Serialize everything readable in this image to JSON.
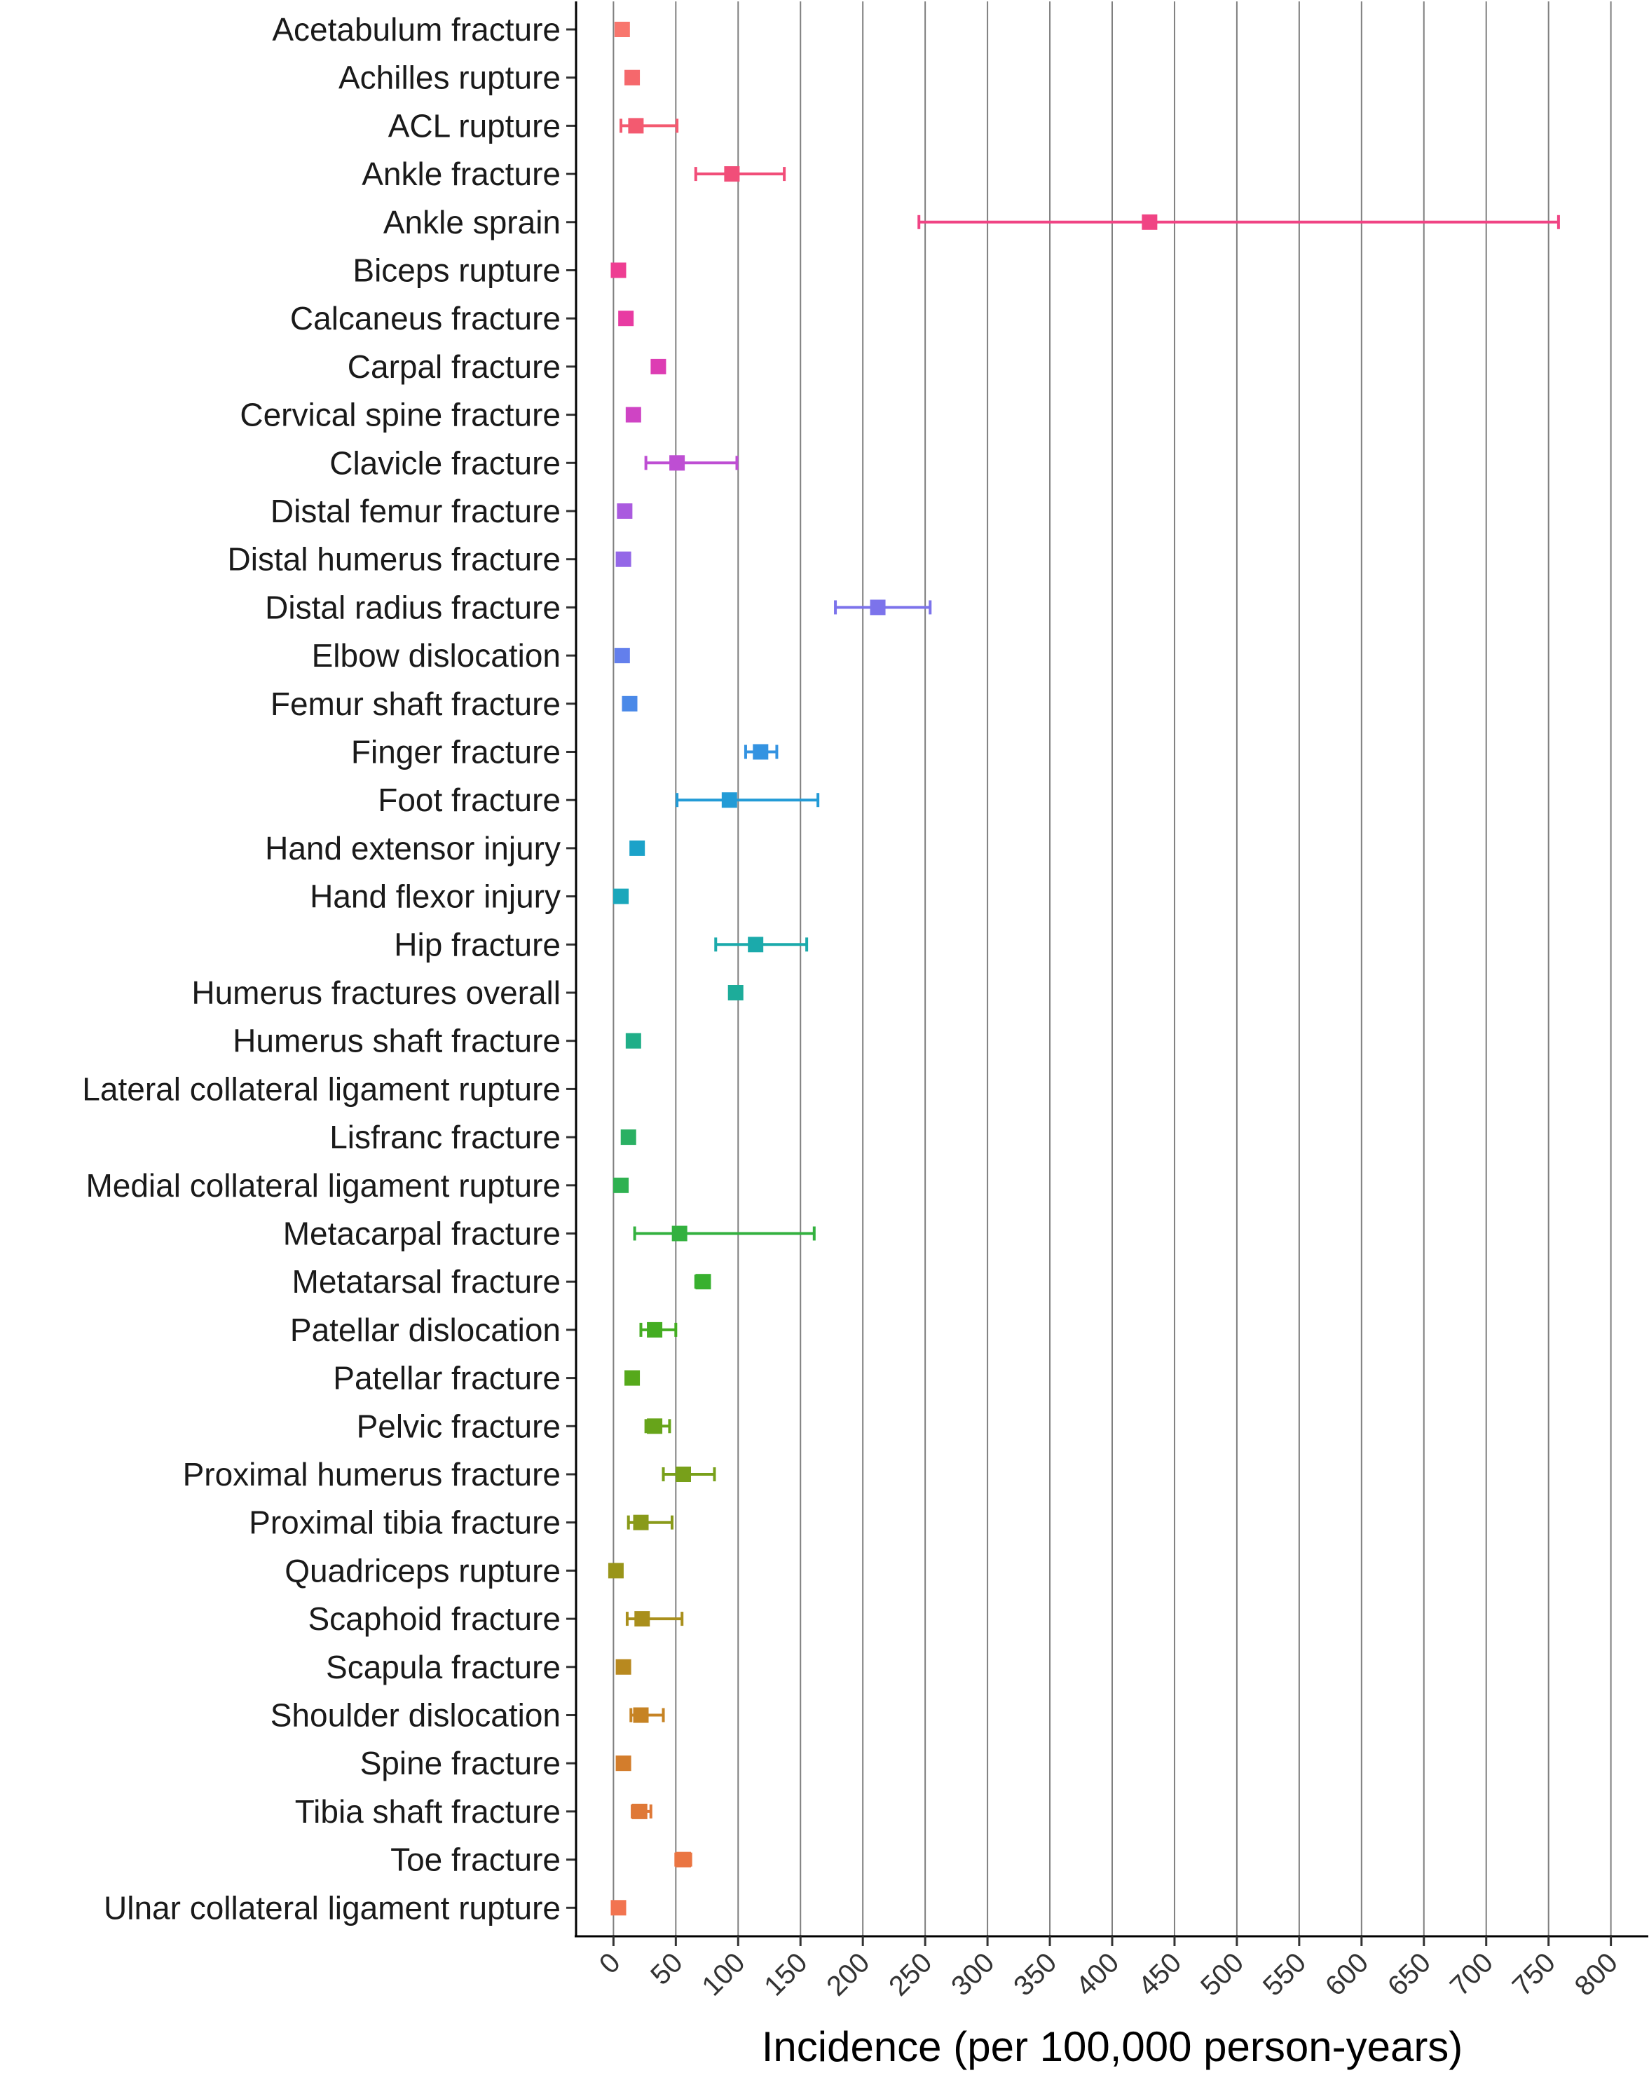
{
  "chart_data": {
    "type": "scatter",
    "subtype": "dot-with-error-bars",
    "title": "",
    "xlabel": "Incidence (per 100,000 person-years)",
    "ylabel": "",
    "xlim": [
      -30,
      830
    ],
    "xticks": [
      0,
      50,
      100,
      150,
      200,
      250,
      300,
      350,
      400,
      450,
      500,
      550,
      600,
      650,
      700,
      750,
      800
    ],
    "xtick_labels": [
      "0",
      "50",
      "100",
      "150",
      "200",
      "250",
      "300",
      "350",
      "400",
      "450",
      "500",
      "550",
      "600",
      "650",
      "700",
      "750",
      "800"
    ],
    "grid": "vertical major gridlines",
    "legend": "none",
    "categories": [
      "Acetabulum fracture",
      "Achilles rupture",
      "ACL rupture",
      "Ankle fracture",
      "Ankle sprain",
      "Biceps rupture",
      "Calcaneus fracture",
      "Carpal fracture",
      "Cervical spine fracture",
      "Clavicle fracture",
      "Distal femur fracture",
      "Distal humerus fracture",
      "Distal radius fracture",
      "Elbow dislocation",
      "Femur shaft fracture",
      "Finger fracture",
      "Foot fracture",
      "Hand extensor injury",
      "Hand flexor injury",
      "Hip fracture",
      "Humerus fractures overall",
      "Humerus shaft fracture",
      "Lateral collateral ligament rupture",
      "Lisfranc fracture",
      "Medial collateral ligament rupture",
      "Metacarpal fracture",
      "Metatarsal fracture",
      "Patellar dislocation",
      "Patellar fracture",
      "Pelvic fracture",
      "Proximal humerus fracture",
      "Proximal tibia fracture",
      "Quadriceps rupture",
      "Scaphoid fracture",
      "Scapula fracture",
      "Shoulder dislocation",
      "Spine fracture",
      "Tibia shaft fracture",
      "Toe fracture",
      "Ulnar collateral ligament rupture"
    ],
    "values": [
      7,
      15,
      18,
      95,
      430,
      4,
      10,
      36,
      16,
      51,
      9,
      8,
      212,
      7,
      13,
      118,
      93,
      19,
      6,
      114,
      98,
      16,
      null,
      12,
      6,
      53,
      72,
      33,
      15,
      33,
      56,
      22,
      2,
      23,
      8,
      22,
      8,
      21,
      56,
      4
    ],
    "lower": [
      null,
      null,
      6,
      66,
      245,
      null,
      null,
      null,
      null,
      26,
      null,
      null,
      178,
      null,
      null,
      106,
      51,
      null,
      null,
      82,
      null,
      null,
      null,
      null,
      null,
      17,
      66,
      22,
      null,
      26,
      40,
      12,
      null,
      11,
      null,
      14,
      null,
      15,
      50,
      null
    ],
    "upper": [
      null,
      null,
      51,
      137,
      758,
      null,
      null,
      null,
      null,
      99,
      null,
      null,
      254,
      null,
      null,
      131,
      164,
      null,
      null,
      155,
      null,
      null,
      null,
      null,
      null,
      161,
      77,
      50,
      null,
      45,
      81,
      47,
      null,
      55,
      null,
      40,
      null,
      30,
      62,
      null
    ],
    "colors": [
      "#F8766D",
      "#F5686C",
      "#F35A70",
      "#F14E79",
      "#F04484",
      "#EE3E92",
      "#E83BA2",
      "#DD3DB3",
      "#CF44C4",
      "#BE4ED3",
      "#AA5ADF",
      "#9467E7",
      "#7C73EB",
      "#637FEC",
      "#4A89E8",
      "#3493E1",
      "#239BD6",
      "#1BA2C9",
      "#1AA7BB",
      "#1BAAAB",
      "#1DAC9A",
      "#20AE88",
      "#25AF75",
      "#2AB063",
      "#2FB151",
      "#33B13F",
      "#38B02F",
      "#44AD22",
      "#56A91B",
      "#67A41A",
      "#78A01A",
      "#899A1A",
      "#99951A",
      "#A98F1C",
      "#B8891F",
      "#C68324",
      "#D37D2C",
      "#DF7836",
      "#EA7542",
      "#F27450"
    ]
  }
}
